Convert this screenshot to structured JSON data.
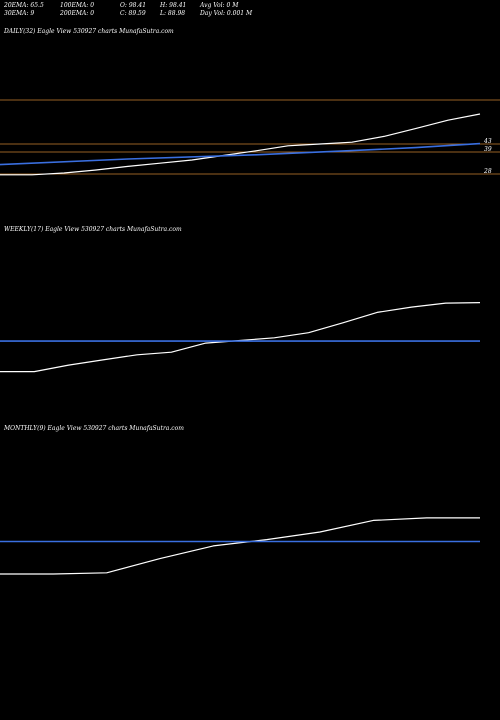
{
  "header": {
    "row1": [
      "20EMA: 65.5",
      "100EMA: 0",
      "O: 98.41",
      "H: 98.41",
      "Avg Vol: 0  M"
    ],
    "row2": [
      "30EMA: 9",
      "200EMA: 0",
      "C: 89.59",
      "L: 88.98",
      "Day Vol: 0.001 M"
    ]
  },
  "panels": [
    {
      "label": "DAILY(32) Eagle   View  530927 charts MunafaSutra.com"
    },
    {
      "label": "WEEKLY(17) Eagle   View  530927 charts MunafaSutra.com"
    },
    {
      "label": "MONTHLY(9) Eagle   View  530927 charts MunafaSutra.com"
    }
  ],
  "colors": {
    "background": "#000000",
    "price": "#ffffff",
    "ema": "#3a6fe0",
    "level": "#c98030"
  },
  "chart_data": [
    {
      "type": "line",
      "title": "DAILY(32) Eagle   View  530927 charts MunafaSutra.com",
      "ylim": [
        20,
        95
      ],
      "series": [
        {
          "points": [
            [
              0,
              27.6
            ],
            [
              1,
              27.6
            ],
            [
              2,
              28.5
            ],
            [
              3,
              30
            ],
            [
              4,
              31.8
            ],
            [
              5,
              33.4
            ],
            [
              6,
              35
            ],
            [
              7,
              37.3
            ],
            [
              8,
              39.6
            ],
            [
              9,
              42.1
            ],
            [
              10,
              43
            ],
            [
              11,
              43.9
            ],
            [
              12,
              46.8
            ],
            [
              13,
              50.8
            ],
            [
              14,
              54.9
            ],
            [
              15,
              58
            ]
          ]
        },
        {
          "points": [
            [
              0,
              32.7
            ],
            [
              4,
              35.5
            ],
            [
              8,
              37.6
            ],
            [
              11,
              39.7
            ],
            [
              13,
              41.2
            ],
            [
              15,
              43.2
            ]
          ]
        }
      ],
      "levels": [
        {
          "value": 65,
          "style": "solid",
          "label": ""
        },
        {
          "value": 43,
          "style": "solid",
          "label": "43"
        },
        {
          "value": 39,
          "style": "solid",
          "label": "39"
        },
        {
          "value": 28,
          "style": "solid",
          "label": "28"
        }
      ]
    },
    {
      "type": "line",
      "title": "WEEKLY(17) Eagle   View  530927 charts MunafaSutra.com",
      "ylim": [
        0,
        100
      ],
      "series": [
        {
          "points": [
            [
              0,
              12.3
            ],
            [
              1,
              12.3
            ],
            [
              2,
              16.6
            ],
            [
              3,
              20.1
            ],
            [
              4,
              23.5
            ],
            [
              5,
              25.2
            ],
            [
              6,
              31.3
            ],
            [
              7,
              33
            ],
            [
              8,
              34.8
            ],
            [
              9,
              38.2
            ],
            [
              10,
              44.8
            ],
            [
              11,
              51.7
            ],
            [
              12,
              55.3
            ],
            [
              13,
              57.9
            ],
            [
              14,
              58.3
            ]
          ]
        },
        {
          "points": [
            [
              0,
              32.6
            ],
            [
              14,
              32.6
            ]
          ]
        }
      ]
    },
    {
      "type": "line",
      "title": "MONTHLY(9) Eagle   View  530927 charts MunafaSutra.com",
      "ylim": [
        0,
        100
      ],
      "series": [
        {
          "points": [
            [
              0,
              10.7
            ],
            [
              1,
              10.7
            ],
            [
              2,
              11.5
            ],
            [
              3,
              20.9
            ],
            [
              4,
              29.4
            ],
            [
              5,
              33.6
            ],
            [
              6,
              38.7
            ],
            [
              7,
              46.4
            ],
            [
              8,
              48.1
            ],
            [
              9,
              48.1
            ]
          ]
        },
        {
          "points": [
            [
              0,
              32.3
            ],
            [
              9,
              32.3
            ]
          ]
        }
      ]
    }
  ]
}
